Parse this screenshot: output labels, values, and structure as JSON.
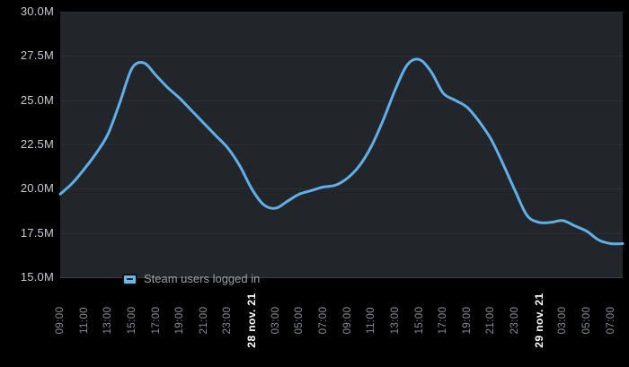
{
  "chart_data": {
    "type": "line",
    "title": "",
    "unit": "millions of users",
    "series": [
      {
        "name": "Steam users logged in",
        "values": [
          19.7,
          20.3,
          21.1,
          22.0,
          23.1,
          24.9,
          26.8,
          27.1,
          26.4,
          25.7,
          25.1,
          24.4,
          23.7,
          23.0,
          22.3,
          21.3,
          20.0,
          19.1,
          18.9,
          19.3,
          19.7,
          19.9,
          20.1,
          20.2,
          20.6,
          21.3,
          22.4,
          23.9,
          25.6,
          27.0,
          27.3,
          26.6,
          25.4,
          25.0,
          24.6,
          23.8,
          22.8,
          21.4,
          19.9,
          18.5,
          18.1,
          18.1,
          18.2,
          17.9,
          17.6,
          17.1,
          16.9,
          16.9
        ]
      }
    ],
    "x": {
      "start": "27 nov. 21 09:00",
      "point_interval_hours": 1,
      "tick_every_points": 2,
      "tick_labels": [
        {
          "text": "09:00",
          "emphasis": false
        },
        {
          "text": "11:00",
          "emphasis": false
        },
        {
          "text": "13:00",
          "emphasis": false
        },
        {
          "text": "15:00",
          "emphasis": false
        },
        {
          "text": "17:00",
          "emphasis": false
        },
        {
          "text": "19:00",
          "emphasis": false
        },
        {
          "text": "21:00",
          "emphasis": false
        },
        {
          "text": "23:00",
          "emphasis": false
        },
        {
          "text": "28 nov. 21",
          "emphasis": true
        },
        {
          "text": "03:00",
          "emphasis": false
        },
        {
          "text": "05:00",
          "emphasis": false
        },
        {
          "text": "07:00",
          "emphasis": false
        },
        {
          "text": "09:00",
          "emphasis": false
        },
        {
          "text": "11:00",
          "emphasis": false
        },
        {
          "text": "13:00",
          "emphasis": false
        },
        {
          "text": "15:00",
          "emphasis": false
        },
        {
          "text": "17:00",
          "emphasis": false
        },
        {
          "text": "19:00",
          "emphasis": false
        },
        {
          "text": "21:00",
          "emphasis": false
        },
        {
          "text": "23:00",
          "emphasis": false
        },
        {
          "text": "29 nov. 21",
          "emphasis": true
        },
        {
          "text": "03:00",
          "emphasis": false
        },
        {
          "text": "05:00",
          "emphasis": false
        },
        {
          "text": "07:00",
          "emphasis": false
        }
      ]
    },
    "y": {
      "min": 15,
      "max": 30,
      "tick_step": 2.5,
      "tick_labels": [
        "30.0M",
        "27.5M",
        "25.0M",
        "22.5M",
        "20.0M",
        "17.5M",
        "15.0M"
      ]
    },
    "legend_position": "bottom-left-inside",
    "grid": "horizontal"
  },
  "legend": {
    "label": "Steam users logged in"
  },
  "colors": {
    "page_bg": "#000000",
    "plot_bg": "#22262a",
    "grid_line": "#2b3036",
    "axis_line": "#3a4046",
    "y_label": "#c6cbd0",
    "x_label": "#868d94",
    "x_label_emphasis": "#ffffff",
    "line": "#5fb0e8",
    "legend_text": "#9aa1a8",
    "legend_marker_fill": "#69b9ef",
    "legend_marker_border": "#101214",
    "legend_marker_dash": "#22262a"
  }
}
